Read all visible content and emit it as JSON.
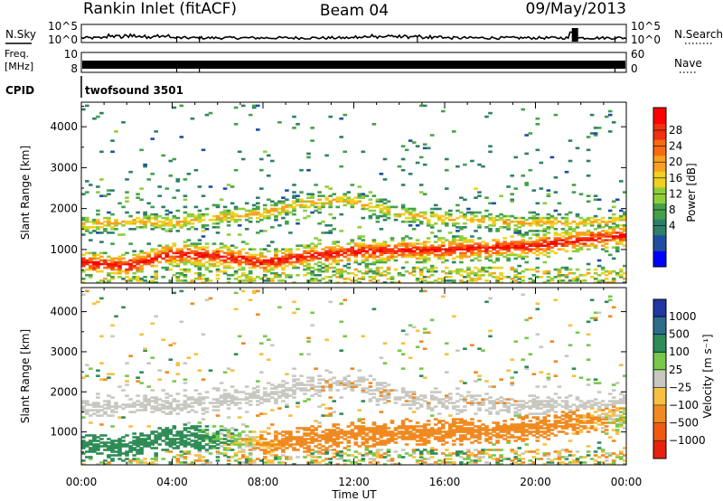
{
  "header": {
    "station": "Rankin Inlet (fitACF)",
    "beam": "Beam 04",
    "date": "09/May/2013"
  },
  "top_panels": {
    "nsky_label": "N.Sky",
    "nsearch_label": "N.Search",
    "nsky_ticks": [
      "10^5",
      "10^0"
    ],
    "freq_label_1": "Freq.",
    "freq_label_2": "[MHz]",
    "freq_ticks": [
      "10",
      "8"
    ],
    "nave_label": "Nave",
    "nave_ticks": [
      "60",
      "0"
    ],
    "cpid_label": "CPID",
    "cpid_value": "twofsound 3501"
  },
  "power_panel": {
    "ylabel": "Slant Range [km]",
    "yticks": [
      "4000",
      "3000",
      "2000",
      "1000"
    ],
    "colorbar_label": "Power [dB]",
    "colorbar_ticks": [
      "28",
      "24",
      "20",
      "16",
      "12",
      "8",
      "4"
    ],
    "colorbar_colors": [
      "#0000ff",
      "#1f4ea0",
      "#2f7f6a",
      "#44a14a",
      "#8fce3a",
      "#f0d020",
      "#f8a020",
      "#f86a10",
      "#f03010",
      "#ff0000"
    ]
  },
  "velocity_panel": {
    "ylabel": "Slant Range [km]",
    "yticks": [
      "4000",
      "3000",
      "2000",
      "1000"
    ],
    "colorbar_label": "Velocity [m s⁻¹]",
    "colorbar_ticks": [
      "1000",
      "500",
      "100",
      "25",
      "−25",
      "−100",
      "−500",
      "−1000"
    ],
    "colorbar_colors": [
      "#2036a0",
      "#2e6c8a",
      "#2f8c56",
      "#78c84a",
      "#c8c8c0",
      "#f8c040",
      "#f08a20",
      "#f05a10",
      "#e82010"
    ]
  },
  "xaxis": {
    "label": "Time UT",
    "ticks": [
      "00:00",
      "04:00",
      "08:00",
      "12:00",
      "16:00",
      "20:00",
      "00:00"
    ]
  },
  "chart_data": [
    {
      "type": "heatmap",
      "title": "Power",
      "xlabel": "Time UT",
      "ylabel": "Slant Range [km]",
      "xlim": [
        0,
        24
      ],
      "ylim": [
        180,
        4600
      ],
      "colorbar": {
        "label": "Power [dB]",
        "range": [
          0,
          32
        ]
      },
      "bands": [
        {
          "name": "lower",
          "range_km": [
            [
              0,
              700
            ],
            [
              2,
              600
            ],
            [
              4,
              900
            ],
            [
              6,
              850
            ],
            [
              8,
              700
            ],
            [
              10,
              850
            ],
            [
              12,
              950
            ],
            [
              14,
              1000
            ],
            [
              16,
              1000
            ],
            [
              18,
              1050
            ],
            [
              20,
              1100
            ],
            [
              22,
              1250
            ],
            [
              24,
              1350
            ]
          ],
          "peak_dB": 30
        },
        {
          "name": "upper",
          "range_km": [
            [
              0,
              1600
            ],
            [
              2,
              1700
            ],
            [
              4,
              1650
            ],
            [
              6,
              1800
            ],
            [
              8,
              1900
            ],
            [
              10,
              2150
            ],
            [
              12,
              2200
            ],
            [
              14,
              1900
            ],
            [
              16,
              1750
            ],
            [
              18,
              1700
            ],
            [
              20,
              1650
            ],
            [
              22,
              1650
            ],
            [
              24,
              1700
            ]
          ],
          "peak_dB": 20
        }
      ]
    },
    {
      "type": "heatmap",
      "title": "Velocity",
      "xlabel": "Time UT",
      "ylabel": "Slant Range [km]",
      "xlim": [
        0,
        24
      ],
      "ylim": [
        180,
        4600
      ],
      "colorbar": {
        "label": "Velocity [m s⁻¹]",
        "range": [
          -1000,
          1000
        ]
      },
      "bands": [
        {
          "name": "lower",
          "range_km": [
            [
              0,
              700
            ],
            [
              2,
              650
            ],
            [
              4,
              900
            ],
            [
              6,
              850
            ],
            [
              8,
              700
            ],
            [
              10,
              850
            ],
            [
              12,
              950
            ],
            [
              14,
              1000
            ],
            [
              16,
              1000
            ],
            [
              18,
              1050
            ],
            [
              20,
              1100
            ],
            [
              22,
              1250
            ],
            [
              24,
              1350
            ]
          ],
          "velocity": [
            [
              0,
              200
            ],
            [
              4,
              300
            ],
            [
              8,
              -100
            ],
            [
              10,
              -300
            ],
            [
              14,
              -400
            ],
            [
              18,
              -350
            ],
            [
              22,
              -150
            ],
            [
              24,
              0
            ]
          ]
        },
        {
          "name": "upper",
          "range_km": [
            [
              0,
              1800
            ],
            [
              4,
              1700
            ],
            [
              8,
              1900
            ],
            [
              10,
              2200
            ],
            [
              12,
              2200
            ],
            [
              16,
              1800
            ],
            [
              20,
              1800
            ],
            [
              24,
              1800
            ]
          ],
          "velocity": [
            [
              0,
              0
            ],
            [
              24,
              0
            ]
          ]
        }
      ]
    }
  ]
}
